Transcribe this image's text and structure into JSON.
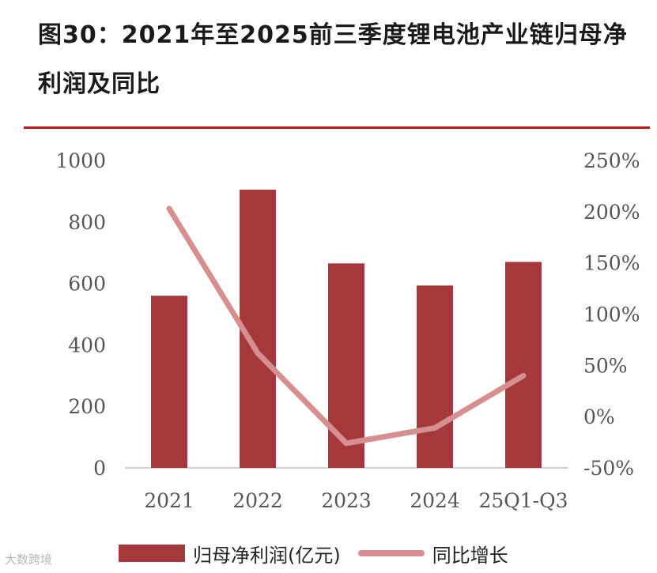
{
  "title": "图30：2021年至2025前三季度锂电池产业链归母净利润及同比",
  "watermark": "大数跨境",
  "colors": {
    "bar": "#a5383b",
    "line": "#d68f8e",
    "rule": "#c0161c",
    "axis_text": "#555555"
  },
  "chart_data": {
    "type": "bar",
    "categories": [
      "2021",
      "2022",
      "2023",
      "2024",
      "25Q1-Q3"
    ],
    "series": [
      {
        "name": "归母净利润(亿元)",
        "type": "bar",
        "axis": "left",
        "values": [
          560,
          905,
          665,
          593,
          670
        ]
      },
      {
        "name": "同比增长",
        "type": "line",
        "axis": "right",
        "values": [
          2.03,
          0.62,
          -0.26,
          -0.11,
          0.4
        ]
      }
    ],
    "y_left": {
      "ylim": [
        0,
        1000
      ],
      "ticks": [
        "0",
        "200",
        "400",
        "600",
        "800",
        "1000"
      ]
    },
    "y_right": {
      "ylim": [
        -0.5,
        2.5
      ],
      "ticks": [
        "-50%",
        "0%",
        "50%",
        "100%",
        "150%",
        "200%",
        "250%"
      ]
    },
    "grid": false,
    "legend": "bottom"
  }
}
